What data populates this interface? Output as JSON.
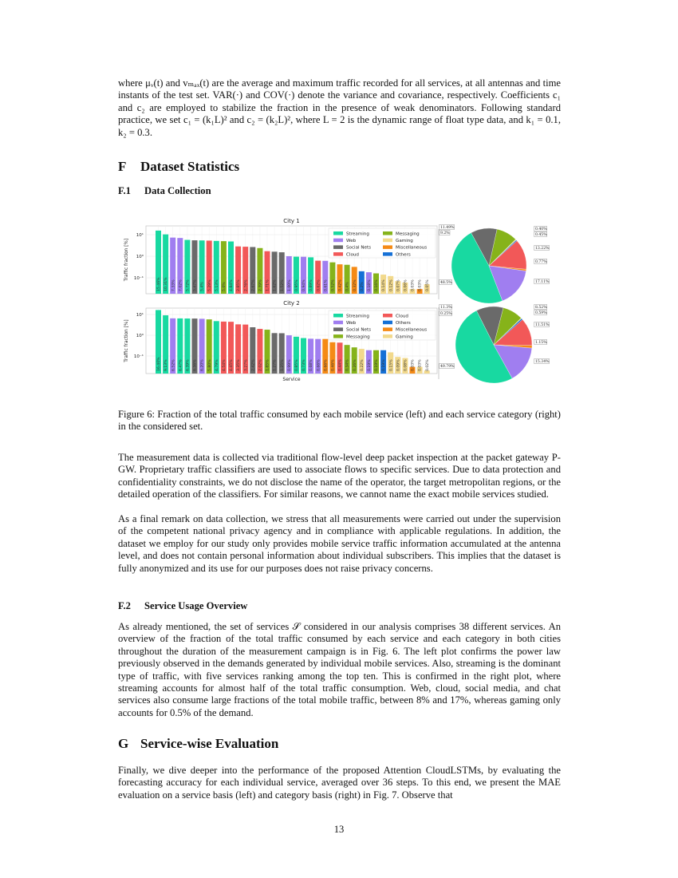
{
  "paragraphs": {
    "intro": "where μᵥ(t) and vₘₐₓ(t) are the average and maximum traffic recorded for all services, at all antennas and time instants of the test set. VAR(·) and COV(·) denote the variance and covariance, respectively. Coefficients c₁ and c₂ are employed to stabilize the fraction in the presence of weak denominators. Following standard practice, we set c₁ = (k₁L)² and c₂ = (k₂L)², where L = 2 is the dynamic range of float type data, and k₁ = 0.1, k₂ = 0.3.",
    "collection_1": "The measurement data is collected via traditional flow-level deep packet inspection at the packet gateway P-GW. Proprietary traffic classifiers are used to associate flows to specific services. Due to data protection and confidentiality constraints, we do not disclose the name of the operator, the target metropolitan regions, or the detailed operation of the classifiers. For similar reasons, we cannot name the exact mobile services studied.",
    "collection_2": "As a final remark on data collection, we stress that all measurements were carried out under the supervision of the competent national privacy agency and in compliance with applicable regulations. In addition, the dataset we employ for our study only provides mobile service traffic information accumulated at the antenna level, and does not contain personal information about individual subscribers. This implies that the dataset is fully anonymized and its use for our purposes does not raise privacy concerns.",
    "usage": "As already mentioned, the set of services 𝒮 considered in our analysis comprises 38 different services. An overview of the fraction of the total traffic consumed by each service and each category in both cities throughout the duration of the measurement campaign is in Fig. 6. The left plot confirms the power law previously observed in the demands generated by individual mobile services. Also, streaming is the dominant type of traffic, with five services ranking among the top ten. This is confirmed in the right plot, where streaming accounts for almost half of the total traffic consumption. Web, cloud, social media, and chat services also consume large fractions of the total mobile traffic, between 8% and 17%, whereas gaming only accounts for 0.5% of the demand.",
    "servicewise": "Finally, we dive deeper into the performance of the proposed Attention CloudLSTMs, by evaluating the forecasting accuracy for each individual service, averaged over 36 steps. To this end, we present the MAE evaluation on a service basis (left) and category basis (right) in Fig. 7. Observe that"
  },
  "headings": {
    "F": {
      "num": "F",
      "title": "Dataset Statistics"
    },
    "F1": {
      "num": "F.1",
      "title": "Data Collection"
    },
    "F2": {
      "num": "F.2",
      "title": "Service Usage Overview"
    },
    "G": {
      "num": "G",
      "title": "Service-wise Evaluation"
    }
  },
  "caption": "Figure 6: Fraction of the total traffic consumed by each mobile service (left) and each service category (right) in the considered set.",
  "page_number": "13",
  "colors": {
    "Streaming": "#18d9a1",
    "Web": "#a07ef0",
    "Social Nets": "#6a6a6a",
    "Cloud": "#f25858",
    "Messaging": "#86b31a",
    "Gaming": "#f2d98c",
    "Miscellaneous": "#f58a15",
    "Others": "#1570d6"
  },
  "chart_data": [
    {
      "type": "bar",
      "title": "City 1",
      "ylabel": "Traffic fraction [%]",
      "xlabel": "",
      "yscale": "log",
      "yticks": [
        "10¹",
        "10⁰",
        "10⁻¹"
      ],
      "grid": true,
      "legend": [
        "Streaming",
        "Web",
        "Social Nets",
        "Cloud",
        "Messaging",
        "Gaming",
        "Miscellaneous",
        "Others"
      ],
      "legend_position": "top-right",
      "values": [
        15.46,
        10.31,
        7.33,
        7.02,
        5.72,
        5.47,
        5.4,
        5.29,
        5.13,
        5.0,
        4.84,
        2.85,
        2.76,
        2.67,
        2.39,
        1.71,
        1.62,
        1.52,
        1.0,
        0.95,
        0.94,
        0.89,
        0.62,
        0.61,
        0.52,
        0.42,
        0.4,
        0.32,
        0.2,
        0.18,
        0.16,
        0.14,
        0.12,
        0.07,
        0.06,
        0.03,
        0.03,
        0.05
      ],
      "labels": [
        "15.46%",
        "10.31%",
        "7.33%",
        "7.02%",
        "5.72%",
        "5.47%",
        "5.4%",
        "5.29%",
        "5.13%",
        "5.0%",
        "4.84%",
        "2.85%",
        "2.76%",
        "2.67%",
        "2.39%",
        "1.71%",
        "1.62%",
        "1.52%",
        "1.00%",
        "0.95%",
        "0.94%",
        "0.89%",
        "0.62%",
        "0.61%",
        "0.52%",
        "0.42%",
        "0.4%",
        "0.32%",
        "0.2%",
        "0.18%",
        "0.16%",
        "0.14%",
        "0.12%",
        "0.07%",
        "0.06%",
        "0.03%",
        "0.03%",
        "0.05%"
      ],
      "categories": [
        "Streaming",
        "Streaming",
        "Web",
        "Web",
        "Streaming",
        "Social Nets",
        "Streaming",
        "Cloud",
        "Streaming",
        "Messaging",
        "Streaming",
        "Cloud",
        "Cloud",
        "Social Nets",
        "Messaging",
        "Cloud",
        "Social Nets",
        "Social Nets",
        "Web",
        "Streaming",
        "Web",
        "Streaming",
        "Cloud",
        "Web",
        "Messaging",
        "Miscellaneous",
        "Messaging",
        "Miscellaneous",
        "Others",
        "Web",
        "Messaging",
        "Gaming",
        "Gaming",
        "Gaming",
        "Gaming",
        "Gaming",
        "Miscellaneous",
        "Gaming"
      ]
    },
    {
      "type": "bar",
      "title": "City 2",
      "ylabel": "Traffic fraction [%]",
      "xlabel": "Service",
      "yscale": "log",
      "yticks": [
        "10¹",
        "10⁰",
        "10⁻¹"
      ],
      "grid": true,
      "legend": [
        "Streaming",
        "Web",
        "Social Nets",
        "Messaging",
        "Cloud",
        "Others",
        "Miscellaneous",
        "Gaming"
      ],
      "legend_position": "top-right",
      "values": [
        16.4,
        9.13,
        6.52,
        6.47,
        6.39,
        6.36,
        6.2,
        5.8,
        4.79,
        4.54,
        4.45,
        3.35,
        3.27,
        2.42,
        2.02,
        1.85,
        1.27,
        1.25,
        0.99,
        0.85,
        0.73,
        0.68,
        0.66,
        0.66,
        0.46,
        0.44,
        0.34,
        0.26,
        0.22,
        0.19,
        0.19,
        0.19,
        0.15,
        0.09,
        0.08,
        0.03,
        0.03,
        0.02
      ],
      "labels": [
        "16.40%",
        "9.13%",
        "6.52%",
        "6.47%",
        "6.39%",
        "6.36%",
        "6.20%",
        "5.80%",
        "4.79%",
        "4.54%",
        "4.45%",
        "3.35%",
        "3.27%",
        "2.42%",
        "2.02%",
        "1.85%",
        "1.27%",
        "1.25%",
        "0.99%",
        "0.85%",
        "0.73%",
        "0.68%",
        "0.66%",
        "0.66%",
        "0.46%",
        "0.44%",
        "0.34%",
        "0.26%",
        "0.22%",
        "0.19%",
        "0.19%",
        "0.19%",
        "0.15%",
        "0.09%",
        "0.08%",
        "0.03%",
        "0.03%",
        "0.02%"
      ],
      "categories": [
        "Streaming",
        "Streaming",
        "Web",
        "Streaming",
        "Streaming",
        "Social Nets",
        "Web",
        "Messaging",
        "Streaming",
        "Cloud",
        "Cloud",
        "Cloud",
        "Cloud",
        "Social Nets",
        "Cloud",
        "Messaging",
        "Social Nets",
        "Social Nets",
        "Web",
        "Streaming",
        "Streaming",
        "Web",
        "Web",
        "Miscellaneous",
        "Miscellaneous",
        "Cloud",
        "Messaging",
        "Messaging",
        "Gaming",
        "Web",
        "Messaging",
        "Others",
        "Gaming",
        "Gaming",
        "Gaming",
        "Miscellaneous",
        "Gaming",
        "Gaming"
      ]
    },
    {
      "type": "pie",
      "slices": [
        {
          "category": "Miscellaneous",
          "value": 0.77,
          "label": "0.77%"
        },
        {
          "category": "Cloud",
          "value": 13.22,
          "label": "13.22%"
        },
        {
          "category": "Others",
          "value": 0.45,
          "label": "0.45%"
        },
        {
          "category": "Gaming",
          "value": 0.4,
          "label": "0.40%"
        },
        {
          "category": "Messaging",
          "value": 9.2,
          "label": "9.2%"
        },
        {
          "category": "Social Nets",
          "value": 11.49,
          "label": "11.49%"
        },
        {
          "category": "Streaming",
          "value": 48.5,
          "label": "48.5%"
        },
        {
          "category": "Web",
          "value": 17.11,
          "label": "17.11%"
        }
      ]
    },
    {
      "type": "pie",
      "slices": [
        {
          "category": "Miscellaneous",
          "value": 1.15,
          "label": "1.15%"
        },
        {
          "category": "Cloud",
          "value": 11.51,
          "label": "11.51%"
        },
        {
          "category": "Others",
          "value": 0.59,
          "label": "0.59%"
        },
        {
          "category": "Gaming",
          "value": 0.25,
          "label": "0.25%"
        },
        {
          "category": "Messaging",
          "value": 8.52,
          "label": "8.52%"
        },
        {
          "category": "Social Nets",
          "value": 11.3,
          "label": "11.3%"
        },
        {
          "category": "Streaming",
          "value": 49.79,
          "label": "49.79%"
        },
        {
          "category": "Web",
          "value": 15.34,
          "label": "15.34%"
        }
      ]
    }
  ]
}
